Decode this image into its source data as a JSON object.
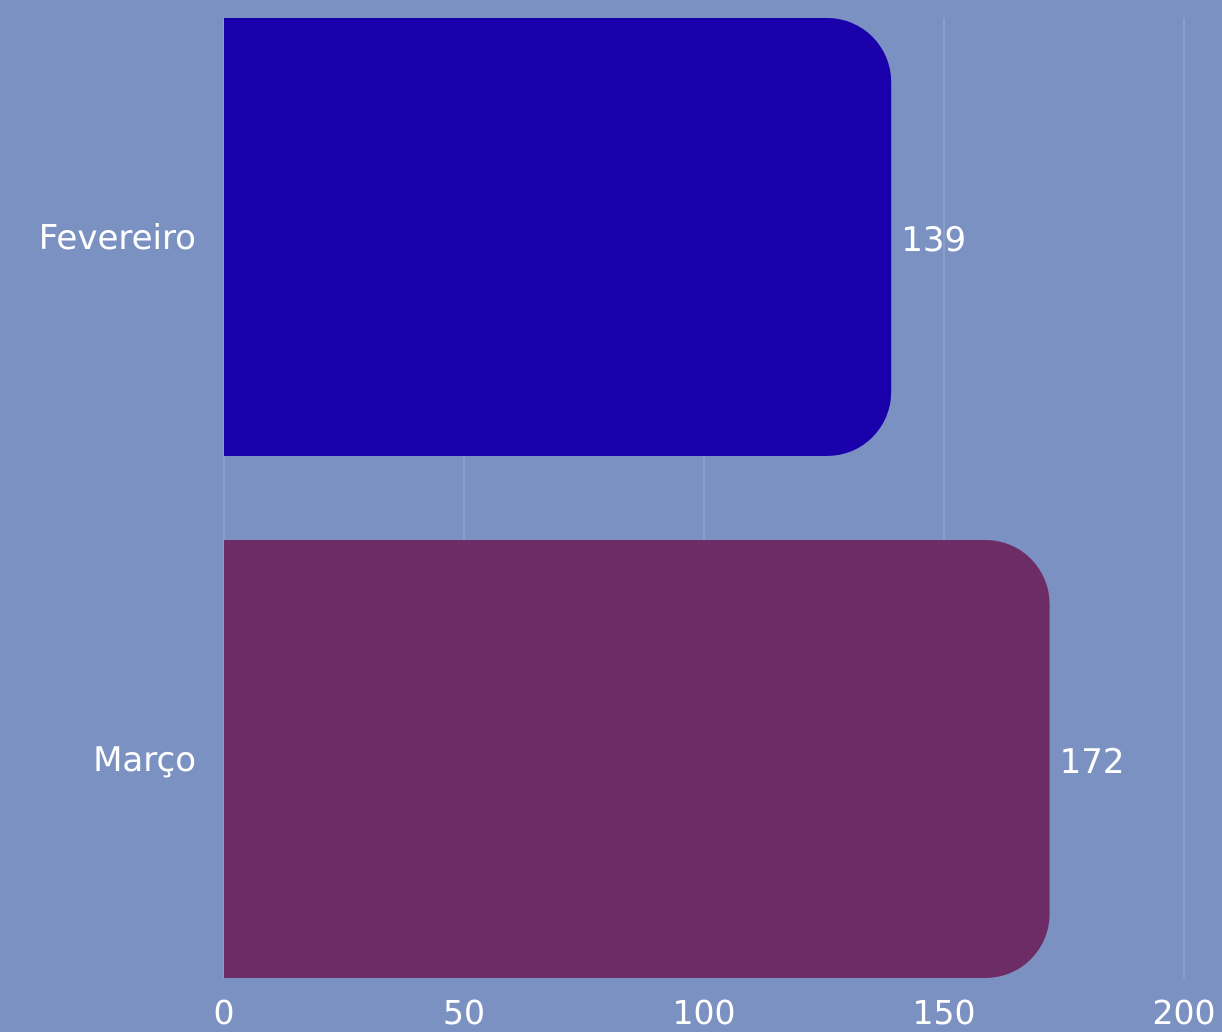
{
  "background_color": "#7B91C1",
  "chart_data": {
    "type": "bar",
    "orientation": "horizontal",
    "categories": [
      "Fevereiro",
      "Março"
    ],
    "values": [
      139,
      172
    ],
    "value_labels": [
      "139",
      "172"
    ],
    "colors": [
      "#1A00AA",
      "#6E2C66"
    ],
    "xlim": [
      0,
      200
    ],
    "xticks": [
      0,
      50,
      100,
      150,
      200
    ],
    "xtick_labels": [
      "0",
      "50",
      "100",
      "150",
      "200"
    ],
    "title": "",
    "xlabel": "",
    "ylabel": "",
    "grid": "vertical",
    "grid_color": "#9AABD3",
    "legend": "none"
  }
}
